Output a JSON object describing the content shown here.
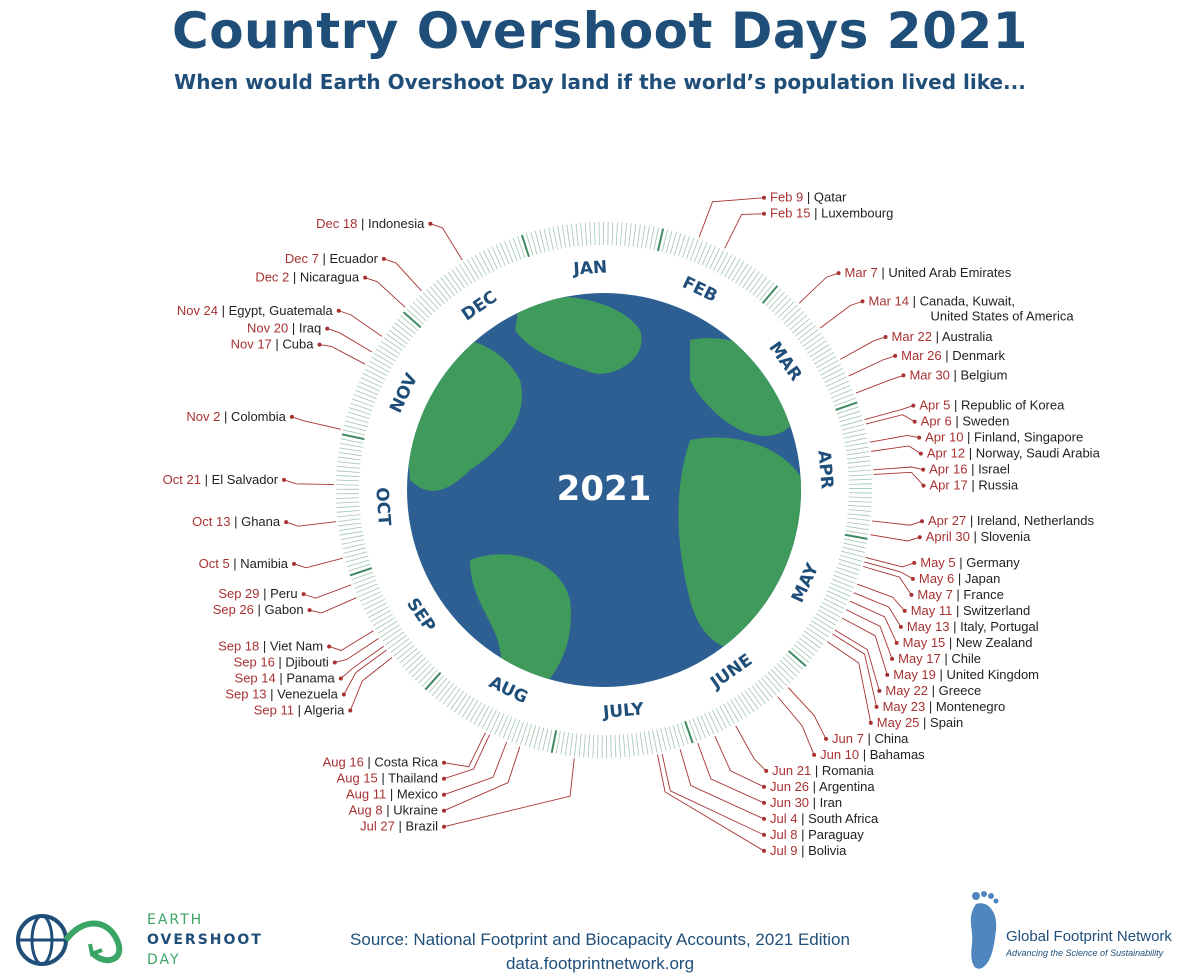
{
  "header": {
    "title": "Country Overshoot Days 2021",
    "subtitle": "When would Earth Overshoot Day land if the world’s population lived like..."
  },
  "center_label": "2021",
  "months": [
    "JAN",
    "FEB",
    "MAR",
    "APR",
    "MAY",
    "JUNE",
    "JULY",
    "AUG",
    "SEP",
    "OCT",
    "NOV",
    "DEC"
  ],
  "entries": [
    {
      "date": "Feb 9",
      "country": "Qatar",
      "doy": 40
    },
    {
      "date": "Feb 15",
      "country": "Luxembourg",
      "doy": 46
    },
    {
      "date": "Mar 7",
      "country": "United Arab Emirates",
      "doy": 66
    },
    {
      "date": "Mar 14",
      "country": "Canada, Kuwait,",
      "country2": "United States of America",
      "doy": 73
    },
    {
      "date": "Mar 22",
      "country": "Australia",
      "doy": 81
    },
    {
      "date": "Mar 26",
      "country": "Denmark",
      "doy": 85
    },
    {
      "date": "Mar 30",
      "country": "Belgium",
      "doy": 89
    },
    {
      "date": "Apr 5",
      "country": "Republic of Korea",
      "doy": 95
    },
    {
      "date": "Apr 6",
      "country": "Sweden",
      "doy": 96
    },
    {
      "date": "Apr 10",
      "country": "Finland, Singapore",
      "doy": 100
    },
    {
      "date": "Apr 12",
      "country": "Norway, Saudi Arabia",
      "doy": 102
    },
    {
      "date": "Apr 16",
      "country": "Israel",
      "doy": 106
    },
    {
      "date": "Apr 17",
      "country": "Russia",
      "doy": 107
    },
    {
      "date": "Apr 27",
      "country": "Ireland, Netherlands",
      "doy": 117
    },
    {
      "date": "April 30",
      "country": "Slovenia",
      "doy": 120
    },
    {
      "date": "May 5",
      "country": "Germany",
      "doy": 125
    },
    {
      "date": "May 6",
      "country": "Japan",
      "doy": 126
    },
    {
      "date": "May 7",
      "country": "France",
      "doy": 127
    },
    {
      "date": "May 11",
      "country": "Switzerland",
      "doy": 131
    },
    {
      "date": "May 13",
      "country": "Italy, Portugal",
      "doy": 133
    },
    {
      "date": "May 15",
      "country": "New Zealand",
      "doy": 135
    },
    {
      "date": "May 17",
      "country": "Chile",
      "doy": 137
    },
    {
      "date": "May 19",
      "country": "United Kingdom",
      "doy": 139
    },
    {
      "date": "May 22",
      "country": "Greece",
      "doy": 142
    },
    {
      "date": "May 23",
      "country": "Montenegro",
      "doy": 143
    },
    {
      "date": "May 25",
      "country": "Spain",
      "doy": 145
    },
    {
      "date": "Jun 7",
      "country": "China",
      "doy": 158
    },
    {
      "date": "Jun 10",
      "country": "Bahamas",
      "doy": 161
    },
    {
      "date": "Jun 21",
      "country": "Romania",
      "doy": 172
    },
    {
      "date": "Jun 26",
      "country": "Argentina",
      "doy": 177
    },
    {
      "date": "Jun 30",
      "country": "Iran",
      "doy": 181
    },
    {
      "date": "Jul 4",
      "country": "South Africa",
      "doy": 185
    },
    {
      "date": "Jul 8",
      "country": "Paraguay",
      "doy": 189
    },
    {
      "date": "Jul 9",
      "country": "Bolivia",
      "doy": 190
    },
    {
      "date": "Jul 27",
      "country": "Brazil",
      "doy": 208
    },
    {
      "date": "Aug 8",
      "country": "Ukraine",
      "doy": 220
    },
    {
      "date": "Aug 11",
      "country": "Mexico",
      "doy": 223
    },
    {
      "date": "Aug 15",
      "country": "Thailand",
      "doy": 227
    },
    {
      "date": "Aug 16",
      "country": "Costa Rica",
      "doy": 228
    },
    {
      "date": "Sep 11",
      "country": "Algeria",
      "doy": 254
    },
    {
      "date": "Sep 13",
      "country": "Venezuela",
      "doy": 256
    },
    {
      "date": "Sep 14",
      "country": "Panama",
      "doy": 257
    },
    {
      "date": "Sep 16",
      "country": "Djibouti",
      "doy": 259
    },
    {
      "date": "Sep 18",
      "country": "Viet Nam",
      "doy": 261
    },
    {
      "date": "Sep 26",
      "country": "Gabon",
      "doy": 269
    },
    {
      "date": "Sep 29",
      "country": "Peru",
      "doy": 272
    },
    {
      "date": "Oct 5",
      "country": "Namibia",
      "doy": 278
    },
    {
      "date": "Oct 13",
      "country": "Ghana",
      "doy": 286
    },
    {
      "date": "Oct 21",
      "country": "El Salvador",
      "doy": 294
    },
    {
      "date": "Nov 2",
      "country": "Colombia",
      "doy": 306
    },
    {
      "date": "Nov 17",
      "country": "Cuba",
      "doy": 321
    },
    {
      "date": "Nov 20",
      "country": "Iraq",
      "doy": 324
    },
    {
      "date": "Nov 24",
      "country": "Egypt, Guatemala",
      "doy": 328
    },
    {
      "date": "Dec 2",
      "country": "Nicaragua",
      "doy": 336
    },
    {
      "date": "Dec 7",
      "country": "Ecuador",
      "doy": 341
    },
    {
      "date": "Dec 18",
      "country": "Indonesia",
      "doy": 352
    }
  ],
  "footer": {
    "source_line1": "Source: National Footprint and Biocapacity Accounts, 2021 Edition",
    "source_line2": "data.footprintnetwork.org",
    "logo_left_line1": "EARTH",
    "logo_left_line2": "OVERSHOOT",
    "logo_left_line3": "DAY",
    "logo_right_name": "Global Footprint Network",
    "logo_right_tagline": "Advancing the Science of Sustainability"
  },
  "colors": {
    "navy": "#1f4e79",
    "date_red": "#a83232",
    "ocean": "#2d5f93",
    "land": "#3f9a5c",
    "ring_tick": "#9fc7ae"
  }
}
